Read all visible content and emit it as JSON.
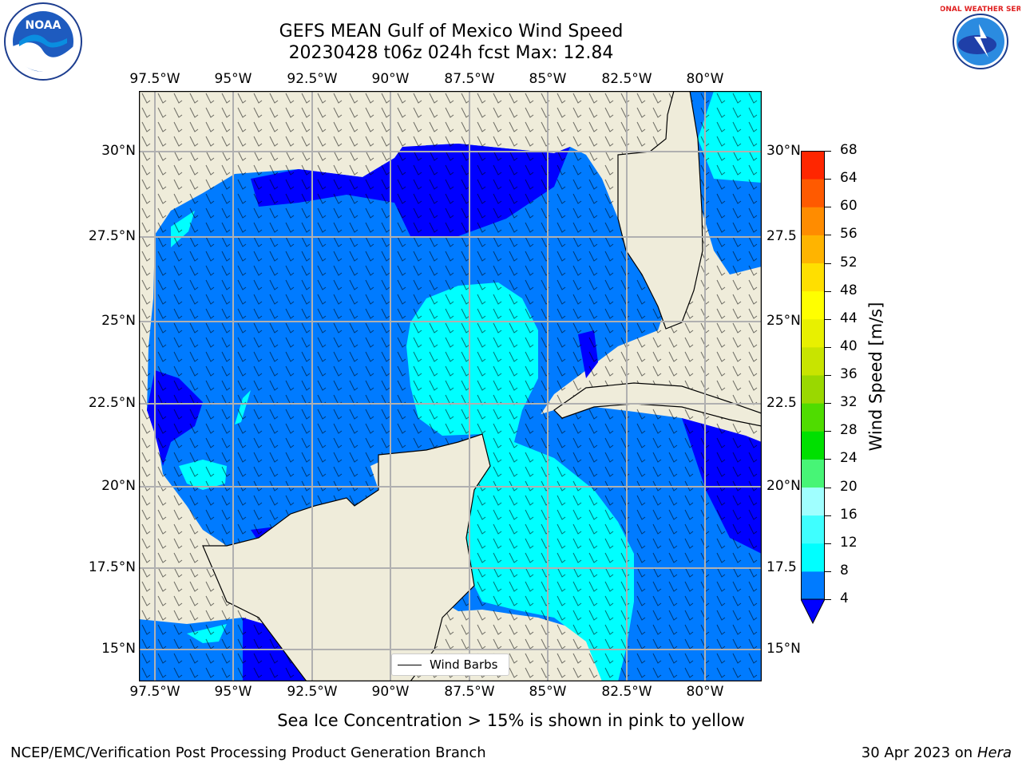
{
  "title": {
    "line1": "GEFS MEAN Gulf of Mexico Wind Speed",
    "line2": "20230428 t06z 024h fcst   Max: 12.84"
  },
  "logos": {
    "left": "NOAA",
    "right": "NATIONAL WEATHER SERVICE"
  },
  "map": {
    "lon_labels": [
      "97.5°W",
      "95°W",
      "92.5°W",
      "90°W",
      "87.5°W",
      "85°W",
      "82.5°W",
      "80°W"
    ],
    "lat_labels": [
      "30°N",
      "27.5°N",
      "25°N",
      "22.5°N",
      "20°N",
      "17.5°N",
      "15°N"
    ],
    "right_lat_labels": [
      "30°N",
      "27.5",
      "25°N",
      "22.5",
      "20°N",
      "17.5",
      "15°N"
    ],
    "land_color": "#efecda",
    "gridlines": true,
    "legend": {
      "label": "Wind Barbs",
      "placement": "bottom-center"
    }
  },
  "colorbar": {
    "label": "Wind Speed [m/s]",
    "ticks": [
      "68",
      "64",
      "60",
      "56",
      "52",
      "48",
      "44",
      "40",
      "36",
      "32",
      "28",
      "24",
      "20",
      "16",
      "12",
      "8",
      "4"
    ],
    "colors": [
      "#0000ff",
      "#007bff",
      "#00ffff",
      "#3fffff",
      "#a0ffff",
      "#47f576",
      "#00e000",
      "#4fdc00",
      "#9ad800",
      "#c8e400",
      "#e8f000",
      "#ffff00",
      "#ffdf00",
      "#ffb400",
      "#ff8c00",
      "#ff5a00",
      "#ff2600",
      "#ff0000"
    ]
  },
  "note": "Sea Ice Concentration > 15% is shown in pink to yellow",
  "footer": {
    "left": "NCEP/EMC/Verification Post Processing Product Generation Branch",
    "right_date": "30 Apr 2023 on ",
    "right_host": "Hera"
  }
}
